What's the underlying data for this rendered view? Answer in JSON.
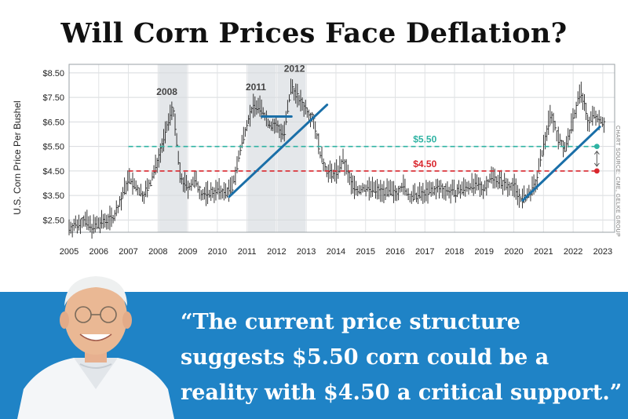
{
  "headline": "Will Corn Prices Face Deflation?",
  "chart_data": {
    "type": "line",
    "ylabel": "U.S. Corn Price Per Bushel",
    "ylim": [
      2.0,
      8.85
    ],
    "xlim": [
      2005.0,
      2023.4
    ],
    "y_ticks": [
      "$2.50",
      "$3.50",
      "$4.50",
      "$5.50",
      "$6.50",
      "$7.50",
      "$8.50"
    ],
    "y_tick_values": [
      2.5,
      3.5,
      4.5,
      5.5,
      6.5,
      7.5,
      8.5
    ],
    "x_ticks": [
      "2005",
      "2006",
      "2007",
      "2008",
      "2009",
      "2010",
      "2011",
      "2012",
      "2013",
      "2014",
      "2015",
      "2016",
      "2017",
      "2018",
      "2019",
      "2020",
      "2021",
      "2022",
      "2023"
    ],
    "source": "CHART SOURCE: CME, GELKE GROUP",
    "highlight_labels": [
      {
        "text": "2008",
        "x": 2008.3,
        "y": 7.6
      },
      {
        "text": "2011",
        "x": 2011.3,
        "y": 7.8
      },
      {
        "text": "2012",
        "x": 2012.6,
        "y": 8.55
      }
    ],
    "shaded_periods": [
      [
        2008.0,
        2009.0
      ],
      [
        2011.0,
        2012.0
      ],
      [
        2012.0,
        2013.0
      ]
    ],
    "reference_lines": [
      {
        "label": "$5.50",
        "value": 5.5,
        "color": "#2fb3a3",
        "style": "dashed"
      },
      {
        "label": "$4.50",
        "value": 4.5,
        "color": "#d9262d",
        "style": "dashed"
      }
    ],
    "trendlines": [
      {
        "from": [
          2010.4,
          3.45
        ],
        "to": [
          2013.7,
          7.2
        ]
      },
      {
        "from": [
          2020.3,
          3.3
        ],
        "to": [
          2022.9,
          6.3
        ]
      },
      {
        "from": [
          2011.5,
          6.72
        ],
        "to": [
          2012.5,
          6.72
        ]
      }
    ],
    "price_series": {
      "x": [
        2005.0,
        2005.25,
        2005.5,
        2005.75,
        2006.0,
        2006.25,
        2006.5,
        2006.75,
        2007.0,
        2007.25,
        2007.5,
        2007.75,
        2008.0,
        2008.25,
        2008.5,
        2008.75,
        2009.0,
        2009.25,
        2009.5,
        2009.75,
        2010.0,
        2010.25,
        2010.5,
        2010.75,
        2011.0,
        2011.25,
        2011.5,
        2011.75,
        2012.0,
        2012.25,
        2012.5,
        2012.75,
        2013.0,
        2013.25,
        2013.5,
        2013.75,
        2014.0,
        2014.25,
        2014.5,
        2014.75,
        2015.0,
        2015.5,
        2016.0,
        2016.25,
        2016.5,
        2017.0,
        2017.5,
        2018.0,
        2018.5,
        2019.0,
        2019.25,
        2019.5,
        2019.75,
        2020.0,
        2020.25,
        2020.5,
        2020.75,
        2021.0,
        2021.25,
        2021.5,
        2021.75,
        2022.0,
        2022.25,
        2022.5,
        2022.75,
        2023.0
      ],
      "y": [
        2.2,
        2.3,
        2.5,
        2.2,
        2.3,
        2.5,
        2.6,
        3.3,
        4.2,
        3.8,
        3.5,
        4.0,
        5.0,
        6.0,
        7.2,
        4.2,
        3.8,
        4.1,
        3.5,
        3.6,
        3.7,
        3.6,
        3.8,
        5.2,
        6.5,
        7.2,
        7.0,
        6.4,
        6.3,
        6.0,
        8.0,
        7.4,
        7.0,
        6.6,
        5.0,
        4.4,
        4.4,
        4.9,
        4.0,
        3.7,
        3.8,
        3.7,
        3.6,
        3.9,
        3.4,
        3.6,
        3.8,
        3.6,
        3.9,
        3.8,
        4.3,
        4.1,
        3.9,
        3.9,
        3.3,
        3.5,
        4.0,
        5.5,
        6.9,
        5.8,
        5.4,
        6.6,
        7.8,
        6.5,
        6.8,
        6.5
      ]
    }
  },
  "quote": {
    "line1": "“The current price structure",
    "line2": "suggests $5.50 corn could be a",
    "line3": "reality with $4.50 a critical support.”"
  },
  "colors": {
    "banner": "#1f83c6",
    "trend": "#1a6fa8",
    "teal": "#2fb3a3",
    "red": "#d9262d",
    "shade": "#e4e7ea"
  }
}
